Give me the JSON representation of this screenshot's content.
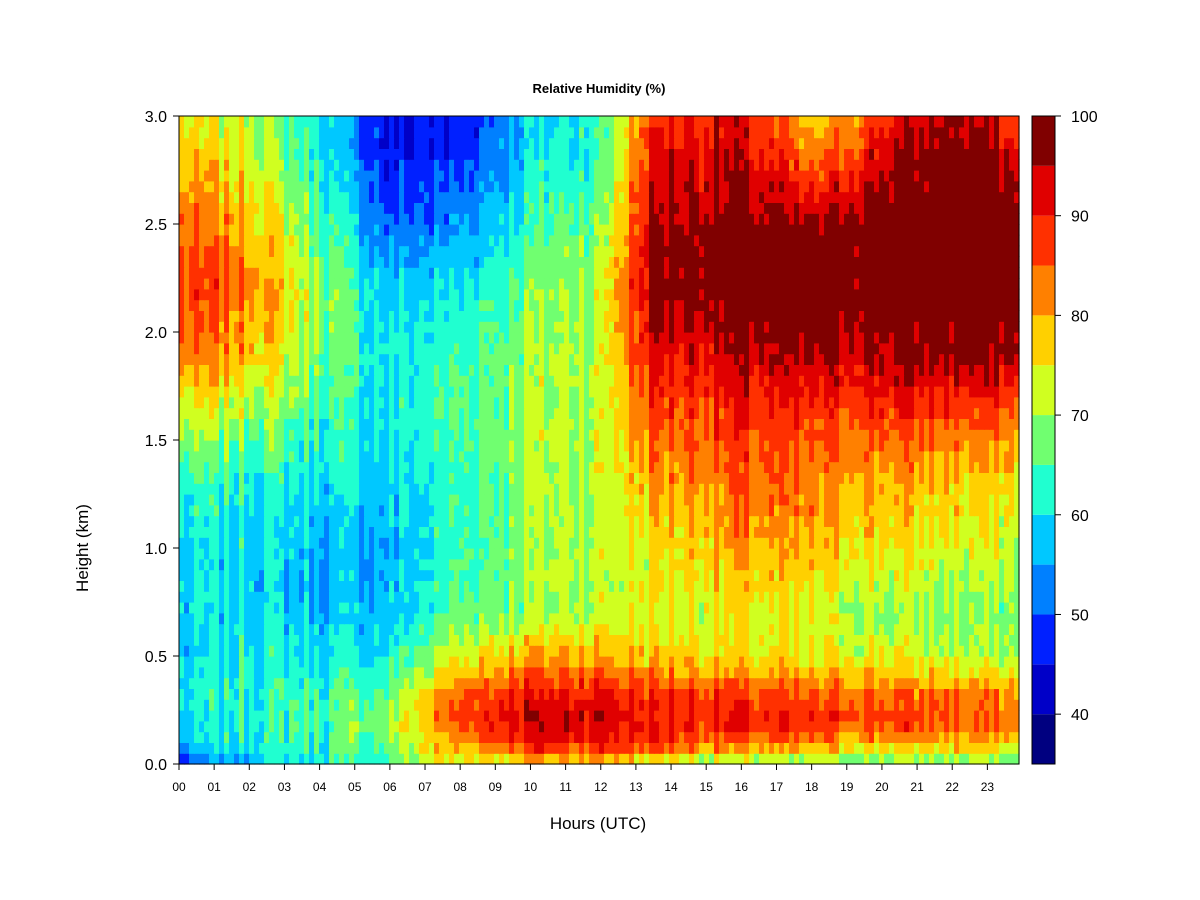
{
  "chart_data": {
    "type": "heatmap",
    "title": "Relative Humidity (%)",
    "xlabel": "Hours (UTC)",
    "ylabel": "Height (km)",
    "x_ticks": [
      "00",
      "01",
      "02",
      "03",
      "04",
      "05",
      "06",
      "07",
      "08",
      "09",
      "10",
      "11",
      "12",
      "13",
      "14",
      "15",
      "16",
      "17",
      "18",
      "19",
      "20",
      "21",
      "22",
      "23"
    ],
    "y_ticks": [
      "0.0",
      "0.5",
      "1.0",
      "1.5",
      "2.0",
      "2.5",
      "3.0"
    ],
    "xlim": [
      0,
      23.9
    ],
    "ylim": [
      0,
      3.0
    ],
    "colorbar": {
      "min": 35,
      "max": 100,
      "step": 5,
      "tick_values": [
        40,
        50,
        60,
        70,
        80,
        90,
        100
      ],
      "tick_labels": [
        "40",
        "50",
        "60",
        "70",
        "80",
        "90",
        "100"
      ],
      "colors": [
        "#000080",
        "#0000c8",
        "#0020ff",
        "#0080ff",
        "#00c8ff",
        "#20ffd0",
        "#70ff70",
        "#d0ff20",
        "#ffd000",
        "#ff8000",
        "#ff3000",
        "#e00000",
        "#800000"
      ]
    },
    "x": [
      0,
      2,
      4,
      6,
      8,
      10,
      12,
      13.5,
      16,
      18,
      20,
      22,
      23.9
    ],
    "y": [
      0.0,
      0.1,
      0.2,
      0.3,
      0.5,
      0.7,
      1.0,
      1.3,
      1.6,
      1.9,
      2.2,
      2.5,
      2.8,
      3.0
    ],
    "z": [
      [
        45,
        58,
        62,
        66,
        74,
        76,
        76,
        73,
        68,
        66,
        66,
        68,
        65
      ],
      [
        55,
        62,
        64,
        68,
        82,
        92,
        92,
        88,
        84,
        82,
        80,
        80,
        78
      ],
      [
        58,
        63,
        64,
        70,
        88,
        94,
        94,
        90,
        90,
        88,
        88,
        86,
        84
      ],
      [
        60,
        63,
        64,
        68,
        86,
        92,
        92,
        90,
        88,
        86,
        86,
        84,
        82
      ],
      [
        57,
        62,
        60,
        60,
        75,
        80,
        80,
        78,
        76,
        74,
        74,
        72,
        70
      ],
      [
        58,
        60,
        56,
        58,
        66,
        70,
        72,
        74,
        74,
        72,
        70,
        68,
        68
      ],
      [
        58,
        60,
        56,
        56,
        64,
        70,
        72,
        76,
        80,
        78,
        76,
        74,
        72
      ],
      [
        62,
        62,
        60,
        58,
        64,
        70,
        72,
        80,
        84,
        82,
        80,
        78,
        76
      ],
      [
        72,
        70,
        64,
        60,
        66,
        70,
        72,
        86,
        88,
        86,
        88,
        86,
        84
      ],
      [
        82,
        80,
        68,
        60,
        64,
        70,
        72,
        92,
        94,
        94,
        96,
        98,
        96
      ],
      [
        88,
        84,
        70,
        58,
        60,
        68,
        72,
        98,
        100,
        100,
        100,
        100,
        100
      ],
      [
        84,
        80,
        66,
        50,
        54,
        64,
        68,
        96,
        98,
        96,
        100,
        100,
        100
      ],
      [
        78,
        74,
        62,
        46,
        48,
        60,
        64,
        92,
        94,
        82,
        94,
        100,
        94
      ],
      [
        74,
        72,
        60,
        44,
        46,
        58,
        64,
        90,
        92,
        76,
        88,
        98,
        86
      ]
    ]
  }
}
